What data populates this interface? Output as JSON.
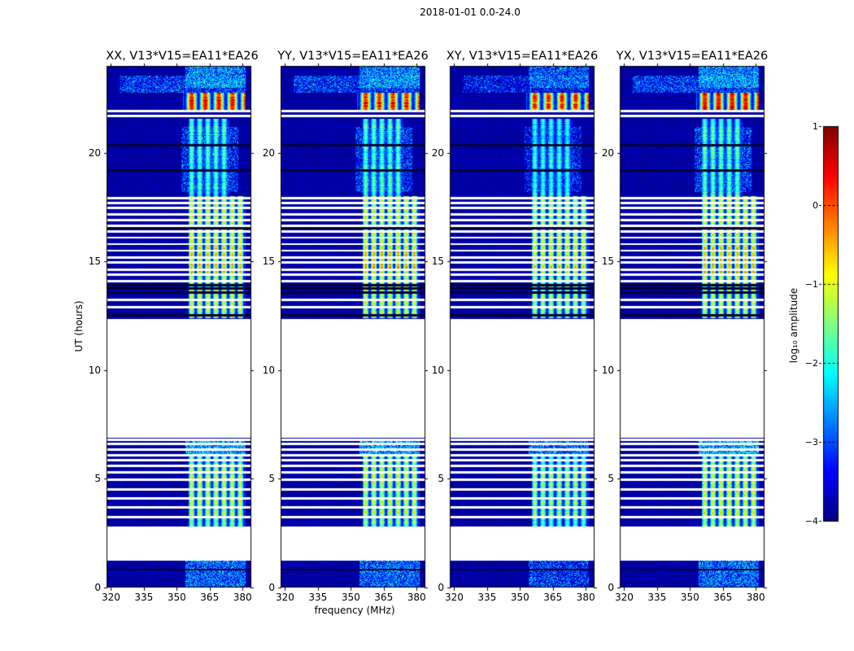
{
  "suptitle": "2018-01-01 0.0-24.0",
  "xlabel": "frequency (MHz)",
  "ylabel": "UT (hours)",
  "panels": [
    {
      "title": "XX, V13*V15=EA11*EA26"
    },
    {
      "title": "YY, V13*V15=EA11*EA26"
    },
    {
      "title": "XY, V13*V15=EA11*EA26"
    },
    {
      "title": "YX, V13*V15=EA11*EA26"
    }
  ],
  "colorbar": {
    "label": "log₁₀ amplitude",
    "ticks": [
      1,
      0,
      -1,
      -2,
      -3,
      -4
    ]
  },
  "chart_data": {
    "type": "heatmap",
    "title": "2018-01-01 0.0-24.0",
    "panel_titles": [
      "XX, V13*V15=EA11*EA26",
      "YY, V13*V15=EA11*EA26",
      "XY, V13*V15=EA11*EA26",
      "YX, V13*V15=EA11*EA26"
    ],
    "xlabel": "frequency (MHz)",
    "ylabel": "UT (hours)",
    "x_ticks": [
      320,
      335,
      350,
      365,
      380
    ],
    "y_ticks": [
      0,
      5,
      10,
      15,
      20
    ],
    "xlim": [
      318,
      384
    ],
    "ylim": [
      0,
      24
    ],
    "colormap": "jet",
    "colormap_stops": [
      "#000080",
      "#0000ff",
      "#00ffff",
      "#00ff00",
      "#ffff00",
      "#ff0000",
      "#800000"
    ],
    "value_label": "log10 amplitude",
    "value_range": [
      -4,
      1
    ],
    "colorbar_ticks": [
      1,
      0,
      -1,
      -2,
      -3,
      -4
    ],
    "background_level": -3.82,
    "no_data_gaps_hours": [
      [
        1.25,
        2.8
      ],
      [
        6.9,
        12.37
      ]
    ],
    "rfi_band_mhz": [
      355.5,
      381.5
    ],
    "events": [
      {
        "t": [
          0.0,
          1.25
        ],
        "f": [
          354,
          381.5
        ],
        "level": -2.7,
        "mode": "speckle",
        "desc": "weak blue-cyan speckle band"
      },
      {
        "t": [
          2.8,
          6.08
        ],
        "f": [
          355.5,
          381.5
        ],
        "level": -1.35,
        "mode": "stripe",
        "period": 3.7,
        "desc": "green-yellow striped RFI band"
      },
      {
        "t": [
          3.3,
          5.55
        ],
        "f": [
          355.5,
          381.5
        ],
        "level": -0.95,
        "mode": "stripe",
        "period": 3.7,
        "desc": "brighter core of striped band"
      },
      {
        "t": [
          6.1,
          6.85
        ],
        "f": [
          354,
          381.5
        ],
        "level": -2.35,
        "mode": "speckle",
        "desc": "speckle rows before long gap"
      },
      {
        "t": [
          12.38,
          14.4
        ],
        "f": [
          355.5,
          381.5
        ],
        "level": -0.95,
        "mode": "stripe",
        "period": 3.7,
        "desc": "yellow striped band"
      },
      {
        "t": [
          14.4,
          15.7
        ],
        "f": [
          355.5,
          381.5
        ],
        "level": -0.45,
        "mode": "stripe",
        "period": 3.7,
        "desc": "brightest orange stripes"
      },
      {
        "t": [
          15.7,
          18.0
        ],
        "f": [
          355.5,
          381.5
        ],
        "level": -0.85,
        "mode": "stripe",
        "period": 3.7,
        "desc": "yellow-green stripes"
      },
      {
        "t": [
          18.0,
          21.55
        ],
        "f": [
          355.5,
          374.0
        ],
        "level": -1.7,
        "mode": "stripe",
        "period": 3.7,
        "desc": "narrower green band"
      },
      {
        "t": [
          18.2,
          21.2
        ],
        "f": [
          352,
          378
        ],
        "level": -3.05,
        "mode": "speckle",
        "desc": "faint cyan wisps"
      },
      {
        "t": [
          21.95,
          22.75
        ],
        "f": [
          353,
          381.5
        ],
        "level": 0.45,
        "mode": "stripe",
        "period": 6.2,
        "desc": "bright red-orange burst"
      },
      {
        "t": [
          22.75,
          23.55
        ],
        "f": [
          324,
          381.5
        ],
        "level": -3.0,
        "mode": "speckle",
        "desc": "broadband speckle near top"
      },
      {
        "t": [
          23.0,
          24.0
        ],
        "f": [
          354,
          381.5
        ],
        "level": -2.55,
        "mode": "speckle",
        "desc": "speckle at top edge"
      }
    ],
    "flagged_rows_white_hours": [
      3.25,
      3.7,
      4.1,
      4.5,
      4.95,
      5.3,
      5.6,
      5.85,
      6.1,
      6.35,
      6.6,
      6.8,
      12.9,
      13.25,
      14.1,
      14.38,
      14.62,
      14.95,
      15.2,
      15.5,
      15.8,
      16.1,
      16.38,
      16.65,
      16.92,
      17.18,
      17.45,
      17.7,
      17.92,
      21.68,
      21.92
    ],
    "flagged_rows_black_hours": [
      0.82,
      12.52,
      13.58,
      13.75,
      13.9,
      16.52,
      19.2,
      20.35
    ],
    "panel_level_offsets": [
      0,
      0,
      -0.25,
      0.05
    ]
  }
}
